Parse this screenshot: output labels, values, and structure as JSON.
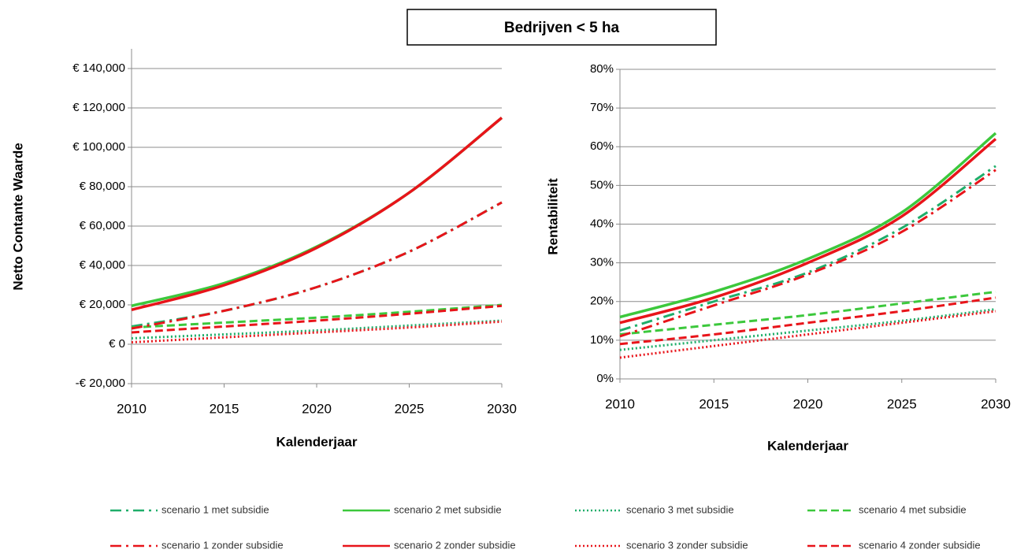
{
  "title": "Bedrijven < 5 ha",
  "chart_data": [
    {
      "type": "line",
      "ylabel": "Netto Contante Waarde",
      "xlabel": "Kalenderjaar",
      "x": [
        2010,
        2015,
        2020,
        2025,
        2030
      ],
      "xlim": [
        2010,
        2030
      ],
      "xticks": [
        2010,
        2015,
        2020,
        2025,
        2030
      ],
      "ylim": [
        -20000,
        150000
      ],
      "yticks": [
        {
          "value": -20000,
          "label": "-€ 20,000"
        },
        {
          "value": 0,
          "label": "€ 0"
        },
        {
          "value": 20000,
          "label": "€ 20,000"
        },
        {
          "value": 40000,
          "label": "€ 40,000"
        },
        {
          "value": 60000,
          "label": "€ 60,000"
        },
        {
          "value": 80000,
          "label": "€ 80,000"
        },
        {
          "value": 100000,
          "label": "€ 100,000"
        },
        {
          "value": 120000,
          "label": "€ 120,000"
        },
        {
          "value": 140000,
          "label": "€ 140,000"
        }
      ],
      "grid": true,
      "series": [
        {
          "name": "scenario 1 met subsidie",
          "color": "#1fae6a",
          "dash": "dashdot",
          "values": [
            9000,
            17000,
            29000,
            47000,
            72000
          ]
        },
        {
          "name": "scenario 2 met subsidie",
          "color": "#3cc83c",
          "dash": "solid",
          "values": [
            19500,
            31000,
            49500,
            77000,
            115000
          ]
        },
        {
          "name": "scenario 3 met subsidie",
          "color": "#1fae6a",
          "dash": "dot",
          "values": [
            3000,
            5000,
            7000,
            9500,
            12000
          ]
        },
        {
          "name": "scenario 4 met subsidie",
          "color": "#3cc83c",
          "dash": "dash",
          "values": [
            8500,
            11000,
            13500,
            16500,
            20000
          ]
        },
        {
          "name": "scenario 1 zonder subsidie",
          "color": "#e8141a",
          "dash": "dashdot",
          "values": [
            8000,
            17000,
            29000,
            47000,
            72000
          ]
        },
        {
          "name": "scenario 2 zonder subsidie",
          "color": "#e8141a",
          "dash": "solid",
          "values": [
            17500,
            30000,
            49000,
            77000,
            115000
          ]
        },
        {
          "name": "scenario 3 zonder subsidie",
          "color": "#e8141a",
          "dash": "dot",
          "values": [
            1000,
            3500,
            6000,
            8500,
            11500
          ]
        },
        {
          "name": "scenario 4 zonder subsidie",
          "color": "#e8141a",
          "dash": "dash",
          "values": [
            6000,
            9000,
            12000,
            15500,
            19500
          ]
        }
      ]
    },
    {
      "type": "line",
      "ylabel": "Rentabiliteit",
      "xlabel": "Kalenderjaar",
      "x": [
        2010,
        2015,
        2020,
        2025,
        2030
      ],
      "xlim": [
        2010,
        2030
      ],
      "xticks": [
        2010,
        2015,
        2020,
        2025,
        2030
      ],
      "ylim": [
        0,
        80
      ],
      "yticks": [
        {
          "value": 0,
          "label": "0%"
        },
        {
          "value": 10,
          "label": "10%"
        },
        {
          "value": 20,
          "label": "20%"
        },
        {
          "value": 30,
          "label": "30%"
        },
        {
          "value": 40,
          "label": "40%"
        },
        {
          "value": 50,
          "label": "50%"
        },
        {
          "value": 60,
          "label": "60%"
        },
        {
          "value": 70,
          "label": "70%"
        },
        {
          "value": 80,
          "label": "80%"
        }
      ],
      "grid": true,
      "series": [
        {
          "name": "scenario 1 met subsidie",
          "color": "#1fae6a",
          "dash": "dashdot",
          "values": [
            12.5,
            20,
            27.5,
            39,
            55
          ]
        },
        {
          "name": "scenario 2 met subsidie",
          "color": "#3cc83c",
          "dash": "solid",
          "values": [
            16,
            22.5,
            31,
            43,
            63.5
          ]
        },
        {
          "name": "scenario 3 met subsidie",
          "color": "#1fae6a",
          "dash": "dot",
          "values": [
            7.5,
            10,
            12.5,
            15,
            18
          ]
        },
        {
          "name": "scenario 4 met subsidie",
          "color": "#3cc83c",
          "dash": "dash",
          "values": [
            11.5,
            14,
            16.5,
            19.5,
            22.5
          ]
        },
        {
          "name": "scenario 1 zonder subsidie",
          "color": "#e8141a",
          "dash": "dashdot",
          "values": [
            11,
            19,
            27,
            38,
            54
          ]
        },
        {
          "name": "scenario 2 zonder subsidie",
          "color": "#e8141a",
          "dash": "solid",
          "values": [
            14.5,
            21,
            30,
            42,
            62
          ]
        },
        {
          "name": "scenario 3 zonder subsidie",
          "color": "#e8141a",
          "dash": "dot",
          "values": [
            5.5,
            8.5,
            11.5,
            14.5,
            17.5
          ]
        },
        {
          "name": "scenario 4 zonder subsidie",
          "color": "#e8141a",
          "dash": "dash",
          "values": [
            9,
            11.5,
            14.5,
            17.5,
            21
          ]
        }
      ]
    }
  ]
}
